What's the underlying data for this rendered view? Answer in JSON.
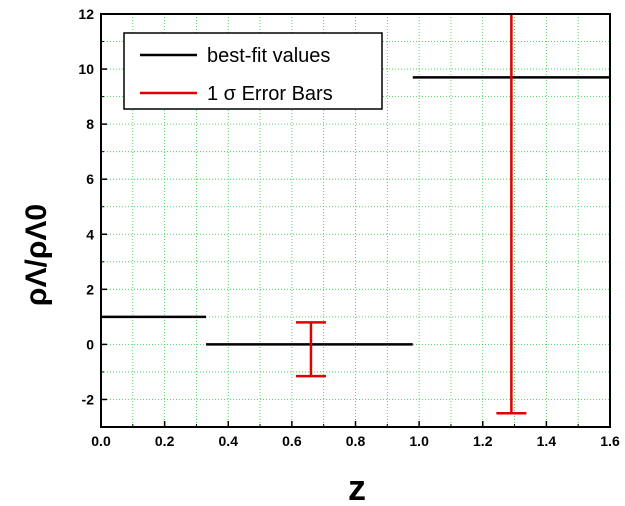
{
  "chart_data": {
    "type": "line",
    "xlabel": "z",
    "ylabel": "ρΛ/ρΛ0",
    "xlim": [
      0.0,
      1.6
    ],
    "ylim": [
      -3,
      12
    ],
    "x_ticks": [
      "0.0",
      "0.2",
      "0.4",
      "0.6",
      "0.8",
      "1.0",
      "1.2",
      "1.4",
      "1.6"
    ],
    "y_ticks": [
      "-2",
      "0",
      "2",
      "4",
      "6",
      "8",
      "10",
      "12"
    ],
    "grid": true,
    "legend_position": "top-left",
    "series": [
      {
        "name": "best-fit values",
        "color": "#000000",
        "segments": [
          {
            "x_start": 0.0,
            "x_end": 0.33,
            "y": 1.0
          },
          {
            "x_start": 0.33,
            "x_end": 0.98,
            "y": 0.0
          },
          {
            "x_start": 0.98,
            "x_end": 1.6,
            "y": 9.7
          }
        ]
      },
      {
        "name": "1 σ Error Bars",
        "color": "#e00000",
        "error_bars": [
          {
            "x": 0.66,
            "low": -1.15,
            "high": 0.8
          },
          {
            "x": 1.29,
            "low": -2.5,
            "high": 12.0
          }
        ]
      }
    ]
  }
}
